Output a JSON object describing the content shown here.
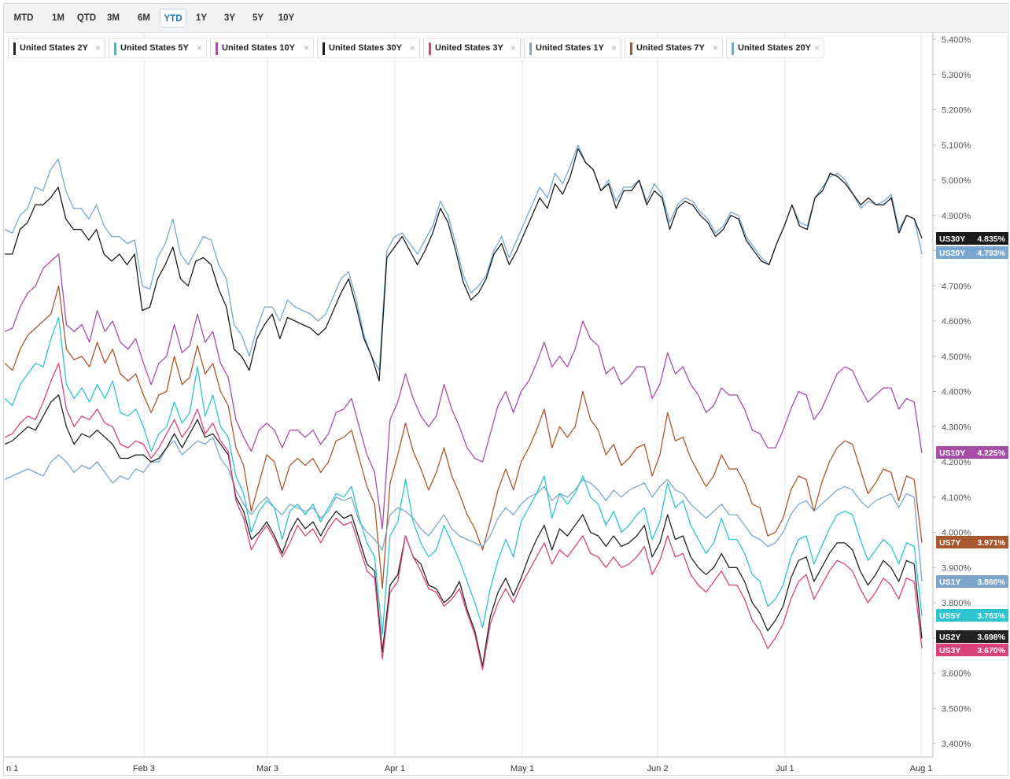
{
  "range_buttons": [
    {
      "label": "MTD",
      "active": false
    },
    {
      "label": "1M",
      "active": false
    },
    {
      "label": "QTD",
      "active": false
    },
    {
      "label": "3M",
      "active": false
    },
    {
      "label": "6M",
      "active": false
    },
    {
      "label": "YTD",
      "active": true
    },
    {
      "label": "1Y",
      "active": false
    },
    {
      "label": "3Y",
      "active": false
    },
    {
      "label": "5Y",
      "active": false
    },
    {
      "label": "10Y",
      "active": false
    }
  ],
  "legend": [
    {
      "label": "United States 2Y",
      "color": "#222222"
    },
    {
      "label": "United States 5Y",
      "color": "#2ec4cf"
    },
    {
      "label": "United States 10Y",
      "color": "#a64ea6"
    },
    {
      "label": "United States 30Y",
      "color": "#1a1a1a"
    },
    {
      "label": "United States 3Y",
      "color": "#d9427a"
    },
    {
      "label": "United States 1Y",
      "color": "#7ea6cc"
    },
    {
      "label": "United States 7Y",
      "color": "#a9572e"
    },
    {
      "label": "United States 20Y",
      "color": "#7aa7cf"
    }
  ],
  "legend_close_glyph": "×",
  "chart_data": {
    "type": "line",
    "y_unit": "%",
    "ylim": [
      3.36,
      5.43
    ],
    "y_ticks": [
      "5.400%",
      "5.300%",
      "5.200%",
      "5.100%",
      "5.000%",
      "4.900%",
      "4.800%",
      "4.700%",
      "4.600%",
      "4.500%",
      "4.400%",
      "4.300%",
      "4.200%",
      "4.100%",
      "4.000%",
      "3.900%",
      "3.800%",
      "3.700%",
      "3.600%",
      "3.500%",
      "3.400%"
    ],
    "x_ticks": [
      "n 1",
      "Feb 3",
      "Mar 3",
      "Apr 1",
      "May 1",
      "Jun 2",
      "Jul 1",
      "Aug 1"
    ],
    "x_range": [
      "2025-01-01",
      "2025-08-01"
    ],
    "y_axis_side": "right",
    "grid": "vertical",
    "series": [
      {
        "name": "United States 20Y",
        "tag": "US20Y",
        "last": "4.793%",
        "color": "#7aa7cf",
        "values": [
          4.86,
          4.85,
          4.9,
          4.92,
          4.98,
          4.97,
          5.03,
          5.06,
          4.97,
          4.92,
          4.92,
          4.89,
          4.93,
          4.87,
          4.84,
          4.84,
          4.82,
          4.83,
          4.7,
          4.69,
          4.78,
          4.82,
          4.89,
          4.79,
          4.76,
          4.8,
          4.84,
          4.83,
          4.76,
          4.72,
          4.59,
          4.56,
          4.5,
          4.58,
          4.64,
          4.64,
          4.6,
          4.66,
          4.64,
          4.63,
          4.62,
          4.6,
          4.62,
          4.67,
          4.72,
          4.74,
          4.66,
          4.56,
          4.5,
          4.46,
          4.8,
          4.84,
          4.85,
          4.82,
          4.79,
          4.83,
          4.87,
          4.94,
          4.9,
          4.82,
          4.73,
          4.68,
          4.7,
          4.73,
          4.8,
          4.84,
          4.78,
          4.83,
          4.88,
          4.93,
          4.98,
          4.95,
          5.02,
          4.99,
          5.04,
          5.1,
          5.05,
          5.03,
          4.97,
          5.0,
          4.94,
          4.98,
          4.98,
          5.0,
          4.94,
          4.99,
          4.96,
          4.88,
          4.93,
          4.95,
          4.94,
          4.91,
          4.89,
          4.85,
          4.87,
          4.91,
          4.9,
          4.84,
          4.81,
          4.78,
          4.76,
          4.82,
          4.87,
          4.93,
          4.88,
          4.87,
          4.95,
          4.98,
          5.01,
          5.02,
          5.0,
          4.96,
          4.92,
          4.94,
          4.93,
          4.94,
          4.96,
          4.86,
          4.9,
          4.89,
          4.79
        ]
      },
      {
        "name": "United States 30Y",
        "tag": "US30Y",
        "last": "4.835%",
        "color": "#1a1a1a",
        "values": [
          4.79,
          4.79,
          4.86,
          4.88,
          4.93,
          4.93,
          4.95,
          4.98,
          4.89,
          4.86,
          4.86,
          4.83,
          4.86,
          4.79,
          4.77,
          4.79,
          4.76,
          4.79,
          4.63,
          4.64,
          4.72,
          4.76,
          4.81,
          4.72,
          4.7,
          4.77,
          4.78,
          4.76,
          4.69,
          4.64,
          4.52,
          4.5,
          4.46,
          4.55,
          4.59,
          4.62,
          4.55,
          4.61,
          4.6,
          4.59,
          4.58,
          4.56,
          4.58,
          4.63,
          4.68,
          4.72,
          4.64,
          4.55,
          4.5,
          4.43,
          4.78,
          4.81,
          4.84,
          4.8,
          4.76,
          4.8,
          4.85,
          4.92,
          4.88,
          4.8,
          4.71,
          4.66,
          4.68,
          4.72,
          4.79,
          4.82,
          4.76,
          4.8,
          4.85,
          4.9,
          4.95,
          4.92,
          4.99,
          4.96,
          5.01,
          5.09,
          5.05,
          5.03,
          4.97,
          4.99,
          4.92,
          4.97,
          4.97,
          5.0,
          4.93,
          4.97,
          4.95,
          4.86,
          4.92,
          4.94,
          4.93,
          4.9,
          4.88,
          4.84,
          4.86,
          4.9,
          4.89,
          4.83,
          4.8,
          4.77,
          4.76,
          4.82,
          4.87,
          4.93,
          4.87,
          4.86,
          4.95,
          4.97,
          5.02,
          5.01,
          4.99,
          4.96,
          4.93,
          4.95,
          4.93,
          4.93,
          4.95,
          4.85,
          4.9,
          4.89,
          4.835
        ]
      },
      {
        "name": "United States 10Y",
        "tag": "US10Y",
        "last": "4.225%",
        "color": "#a64ea6",
        "values": [
          4.57,
          4.58,
          4.64,
          4.68,
          4.7,
          4.75,
          4.77,
          4.79,
          4.59,
          4.57,
          4.59,
          4.54,
          4.63,
          4.57,
          4.6,
          4.54,
          4.52,
          4.55,
          4.48,
          4.42,
          4.48,
          4.5,
          4.59,
          4.51,
          4.53,
          4.62,
          4.54,
          4.57,
          4.48,
          4.44,
          4.32,
          4.27,
          4.23,
          4.29,
          4.31,
          4.29,
          4.24,
          4.29,
          4.29,
          4.27,
          4.29,
          4.25,
          4.28,
          4.34,
          4.35,
          4.38,
          4.3,
          4.22,
          4.17,
          4.01,
          4.32,
          4.37,
          4.45,
          4.38,
          4.33,
          4.3,
          4.33,
          4.42,
          4.35,
          4.3,
          4.24,
          4.21,
          4.2,
          4.28,
          4.36,
          4.4,
          4.34,
          4.4,
          4.43,
          4.48,
          4.54,
          4.47,
          4.5,
          4.47,
          4.52,
          4.6,
          4.55,
          4.53,
          4.45,
          4.47,
          4.42,
          4.44,
          4.47,
          4.47,
          4.38,
          4.42,
          4.51,
          4.45,
          4.47,
          4.42,
          4.39,
          4.34,
          4.36,
          4.41,
          4.39,
          4.39,
          4.35,
          4.29,
          4.28,
          4.24,
          4.24,
          4.29,
          4.35,
          4.4,
          4.39,
          4.32,
          4.35,
          4.4,
          4.45,
          4.47,
          4.46,
          4.41,
          4.37,
          4.39,
          4.41,
          4.41,
          4.35,
          4.38,
          4.37,
          4.225
        ]
      },
      {
        "name": "United States 7Y",
        "tag": "US7Y",
        "last": "3.971%",
        "color": "#a9572e",
        "values": [
          4.48,
          4.46,
          4.52,
          4.56,
          4.58,
          4.6,
          4.62,
          4.7,
          4.52,
          4.49,
          4.5,
          4.47,
          4.54,
          4.48,
          4.52,
          4.45,
          4.43,
          4.45,
          4.39,
          4.34,
          4.39,
          4.4,
          4.5,
          4.42,
          4.44,
          4.53,
          4.45,
          4.48,
          4.4,
          4.36,
          4.24,
          4.19,
          4.06,
          4.14,
          4.22,
          4.2,
          4.12,
          4.19,
          4.21,
          4.19,
          4.21,
          4.17,
          4.2,
          4.26,
          4.27,
          4.29,
          4.21,
          4.13,
          4.08,
          3.84,
          4.14,
          4.22,
          4.31,
          4.23,
          4.18,
          4.12,
          4.17,
          4.24,
          4.16,
          4.11,
          4.05,
          4.01,
          3.95,
          4.03,
          4.12,
          4.18,
          4.12,
          4.2,
          4.24,
          4.29,
          4.35,
          4.24,
          4.3,
          4.27,
          4.3,
          4.4,
          4.32,
          4.29,
          4.22,
          4.25,
          4.19,
          4.21,
          4.24,
          4.25,
          4.16,
          4.22,
          4.34,
          4.26,
          4.27,
          4.21,
          4.17,
          4.13,
          4.16,
          4.22,
          4.18,
          4.18,
          4.14,
          4.08,
          4.07,
          3.99,
          4.0,
          4.04,
          4.12,
          4.16,
          4.15,
          4.06,
          4.14,
          4.2,
          4.24,
          4.26,
          4.25,
          4.18,
          4.11,
          4.14,
          4.18,
          4.17,
          4.09,
          4.16,
          4.15,
          3.971
        ]
      },
      {
        "name": "United States 1Y",
        "tag": "US1Y",
        "last": "3.860%",
        "color": "#7ea6cc",
        "values": [
          4.15,
          4.16,
          4.17,
          4.18,
          4.17,
          4.16,
          4.2,
          4.22,
          4.2,
          4.17,
          4.19,
          4.18,
          4.2,
          4.17,
          4.14,
          4.16,
          4.15,
          4.18,
          4.17,
          4.2,
          4.2,
          4.24,
          4.26,
          4.22,
          4.24,
          4.26,
          4.25,
          4.27,
          4.21,
          4.18,
          4.12,
          4.08,
          4.05,
          4.08,
          4.1,
          4.07,
          4.05,
          4.08,
          4.07,
          4.06,
          4.07,
          4.04,
          4.06,
          4.1,
          4.09,
          4.1,
          4.03,
          4.0,
          3.98,
          3.95,
          4.05,
          4.07,
          4.06,
          4.04,
          4.01,
          3.99,
          4.02,
          4.05,
          4.01,
          3.99,
          3.98,
          3.97,
          3.96,
          3.99,
          4.04,
          4.07,
          4.05,
          4.08,
          4.1,
          4.11,
          4.13,
          4.09,
          4.11,
          4.1,
          4.12,
          4.15,
          4.14,
          4.12,
          4.09,
          4.12,
          4.1,
          4.12,
          4.13,
          4.14,
          4.1,
          4.13,
          4.15,
          4.12,
          4.11,
          4.08,
          4.06,
          4.04,
          4.06,
          4.08,
          4.05,
          4.05,
          4.02,
          3.99,
          3.98,
          3.96,
          3.97,
          4.0,
          4.05,
          4.08,
          4.09,
          4.06,
          4.08,
          4.1,
          4.12,
          4.13,
          4.12,
          4.09,
          4.07,
          4.09,
          4.1,
          4.11,
          4.07,
          4.11,
          4.1,
          3.86
        ]
      },
      {
        "name": "United States 5Y",
        "tag": "US5Y",
        "last": "3.763%",
        "color": "#2ec4cf",
        "values": [
          4.38,
          4.36,
          4.42,
          4.45,
          4.48,
          4.47,
          4.55,
          4.61,
          4.42,
          4.38,
          4.41,
          4.37,
          4.42,
          4.38,
          4.43,
          4.34,
          4.33,
          4.35,
          4.3,
          4.23,
          4.28,
          4.3,
          4.37,
          4.31,
          4.34,
          4.47,
          4.33,
          4.39,
          4.3,
          4.27,
          4.16,
          4.11,
          4.0,
          4.06,
          4.09,
          4.07,
          3.98,
          4.06,
          4.08,
          4.05,
          4.08,
          4.03,
          4.07,
          4.11,
          4.1,
          4.13,
          4.04,
          3.97,
          3.93,
          3.71,
          3.99,
          4.03,
          4.15,
          4.03,
          3.97,
          3.93,
          3.95,
          4.02,
          3.97,
          3.92,
          3.86,
          3.8,
          3.73,
          3.84,
          3.92,
          3.98,
          3.93,
          4.03,
          4.07,
          4.11,
          4.16,
          4.04,
          4.11,
          4.08,
          4.11,
          4.16,
          4.1,
          4.08,
          4.02,
          4.06,
          4.0,
          4.02,
          4.05,
          4.07,
          3.98,
          4.03,
          4.14,
          4.07,
          4.09,
          4.02,
          3.98,
          3.94,
          3.97,
          4.04,
          3.98,
          3.98,
          3.94,
          3.88,
          3.86,
          3.79,
          3.81,
          3.85,
          3.93,
          3.98,
          3.99,
          3.91,
          3.96,
          4.01,
          4.05,
          4.06,
          4.05,
          3.98,
          3.92,
          3.95,
          3.98,
          3.96,
          3.91,
          3.97,
          3.96,
          3.763
        ]
      },
      {
        "name": "United States 2Y",
        "tag": "US2Y",
        "last": "3.698%",
        "color": "#222222",
        "values": [
          4.25,
          4.26,
          4.28,
          4.3,
          4.29,
          4.33,
          4.37,
          4.39,
          4.3,
          4.25,
          4.28,
          4.27,
          4.29,
          4.27,
          4.25,
          4.21,
          4.21,
          4.22,
          4.22,
          4.2,
          4.21,
          4.24,
          4.28,
          4.24,
          4.28,
          4.32,
          4.27,
          4.28,
          4.25,
          4.22,
          4.1,
          4.06,
          3.98,
          4.0,
          4.03,
          3.99,
          3.94,
          4.0,
          4.04,
          4.01,
          4.03,
          3.99,
          4.03,
          4.06,
          4.04,
          4.05,
          3.98,
          3.91,
          3.89,
          3.66,
          3.85,
          3.88,
          3.99,
          3.93,
          3.91,
          3.85,
          3.84,
          3.8,
          3.82,
          3.86,
          3.78,
          3.72,
          3.62,
          3.76,
          3.83,
          3.87,
          3.82,
          3.87,
          3.93,
          3.98,
          4.02,
          3.95,
          4.01,
          3.99,
          4.02,
          4.05,
          4.0,
          3.99,
          3.96,
          3.99,
          3.96,
          3.97,
          3.99,
          4.02,
          3.93,
          3.97,
          4.05,
          3.98,
          3.99,
          3.93,
          3.9,
          3.88,
          3.9,
          3.94,
          3.9,
          3.9,
          3.86,
          3.8,
          3.77,
          3.72,
          3.75,
          3.79,
          3.87,
          3.92,
          3.93,
          3.86,
          3.9,
          3.94,
          3.97,
          3.97,
          3.95,
          3.89,
          3.85,
          3.88,
          3.92,
          3.9,
          3.86,
          3.92,
          3.91,
          3.698
        ]
      },
      {
        "name": "United States 3Y",
        "tag": "US3Y",
        "last": "3.670%",
        "color": "#d9427a",
        "values": [
          4.27,
          4.28,
          4.31,
          4.33,
          4.32,
          4.37,
          4.43,
          4.48,
          4.35,
          4.3,
          4.33,
          4.32,
          4.35,
          4.31,
          4.3,
          4.25,
          4.24,
          4.26,
          4.25,
          4.21,
          4.24,
          4.28,
          4.32,
          4.27,
          4.3,
          4.35,
          4.28,
          4.31,
          4.26,
          4.23,
          4.09,
          4.04,
          3.95,
          3.99,
          4.02,
          3.98,
          3.93,
          3.97,
          4.02,
          3.99,
          4.01,
          3.97,
          4.01,
          4.04,
          4.02,
          4.03,
          3.96,
          3.89,
          3.87,
          3.64,
          3.83,
          3.86,
          3.99,
          3.93,
          3.89,
          3.84,
          3.83,
          3.79,
          3.81,
          3.84,
          3.77,
          3.71,
          3.61,
          3.74,
          3.8,
          3.84,
          3.8,
          3.85,
          3.89,
          3.93,
          3.97,
          3.91,
          3.95,
          3.93,
          3.96,
          3.99,
          3.94,
          3.93,
          3.9,
          3.93,
          3.9,
          3.91,
          3.93,
          3.96,
          3.88,
          3.92,
          3.99,
          3.93,
          3.94,
          3.88,
          3.85,
          3.83,
          3.86,
          3.89,
          3.85,
          3.85,
          3.81,
          3.75,
          3.72,
          3.67,
          3.7,
          3.74,
          3.81,
          3.86,
          3.88,
          3.81,
          3.85,
          3.89,
          3.92,
          3.91,
          3.89,
          3.84,
          3.8,
          3.83,
          3.87,
          3.85,
          3.81,
          3.87,
          3.86,
          3.67
        ]
      }
    ]
  }
}
